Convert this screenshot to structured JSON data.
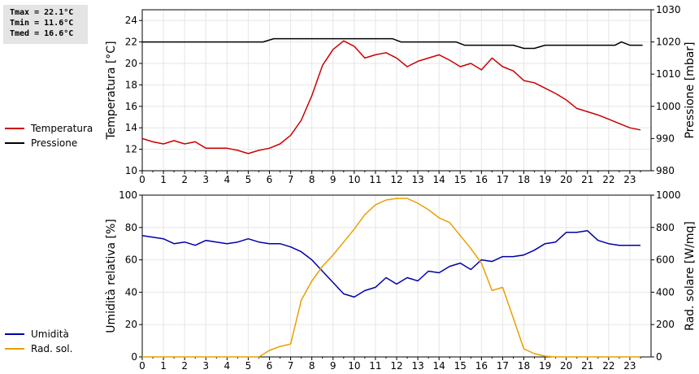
{
  "stats": {
    "tmax": "Tmax = 22.1°C",
    "tmin": "Tmin = 11.6°C",
    "tmed": "Tmed = 16.6°C"
  },
  "chart_data": [
    {
      "type": "line",
      "x_ticks": [
        "0",
        "1",
        "2",
        "3",
        "4",
        "5",
        "6",
        "7",
        "8",
        "9",
        "10",
        "11",
        "12",
        "13",
        "14",
        "15",
        "16",
        "17",
        "18",
        "19",
        "20",
        "21",
        "22",
        "23"
      ],
      "xlim": [
        0,
        24
      ],
      "y_left": {
        "label": "Temperatura [°C]",
        "ylim": [
          10,
          25
        ],
        "ticks": [
          "10",
          "12",
          "14",
          "16",
          "18",
          "20",
          "22",
          "24"
        ]
      },
      "y_right": {
        "label": "Pressione [mbar]",
        "ylim": [
          980,
          1030
        ],
        "ticks": [
          "980",
          "990",
          "1000",
          "1010",
          "1020",
          "1030"
        ]
      },
      "grid": true,
      "legend_position": "left",
      "series": [
        {
          "name": "Temperatura",
          "axis": "left",
          "color": "#cc0000",
          "x": [
            0,
            0.5,
            1,
            1.5,
            2,
            2.5,
            3,
            3.5,
            4,
            4.5,
            5,
            5.5,
            6,
            6.5,
            7,
            7.5,
            8,
            8.5,
            9,
            9.5,
            10,
            10.5,
            11,
            11.5,
            12,
            12.5,
            13,
            13.5,
            14,
            14.5,
            15,
            15.5,
            16,
            16.5,
            17,
            17.5,
            18,
            18.5,
            19,
            19.5,
            20,
            20.5,
            21,
            21.5,
            22,
            22.5,
            23,
            23.5
          ],
          "y": [
            13.0,
            12.7,
            12.5,
            12.8,
            12.5,
            12.7,
            12.1,
            12.1,
            12.1,
            11.9,
            11.6,
            11.9,
            12.1,
            12.5,
            13.3,
            14.7,
            17.0,
            19.8,
            21.3,
            22.1,
            21.6,
            20.5,
            20.8,
            21.0,
            20.5,
            19.7,
            20.2,
            20.5,
            20.8,
            20.3,
            19.7,
            20.0,
            19.4,
            20.5,
            19.7,
            19.3,
            18.4,
            18.2,
            17.7,
            17.2,
            16.6,
            15.8,
            15.5,
            15.2,
            14.8,
            14.4,
            14.0,
            13.8
          ]
        },
        {
          "name": "Pressione",
          "axis": "right",
          "color": "#000000",
          "x": [
            0,
            5.7,
            6.2,
            11.8,
            12.2,
            14.8,
            15.2,
            17.5,
            18.0,
            18.5,
            19.0,
            22.3,
            22.6,
            23.0,
            23.6
          ],
          "y": [
            1020,
            1020,
            1021,
            1021,
            1020,
            1020,
            1019,
            1019,
            1018,
            1018,
            1019,
            1019,
            1020,
            1019,
            1019
          ]
        }
      ]
    },
    {
      "type": "line",
      "x_ticks": [
        "0",
        "1",
        "2",
        "3",
        "4",
        "5",
        "6",
        "7",
        "8",
        "9",
        "10",
        "11",
        "12",
        "13",
        "14",
        "15",
        "16",
        "17",
        "18",
        "19",
        "20",
        "21",
        "22",
        "23"
      ],
      "xlim": [
        0,
        24
      ],
      "y_left": {
        "label": "Umidità relativa [%]",
        "ylim": [
          0,
          100
        ],
        "ticks": [
          "0",
          "20",
          "40",
          "60",
          "80",
          "100"
        ]
      },
      "y_right": {
        "label": "Rad. solare [W/mq]",
        "ylim": [
          0,
          1000
        ],
        "ticks": [
          "0",
          "200",
          "400",
          "600",
          "800",
          "1000"
        ]
      },
      "grid": true,
      "legend_position": "left",
      "series": [
        {
          "name": "Umidità",
          "axis": "left",
          "color": "#0000aa",
          "x": [
            0,
            0.5,
            1,
            1.5,
            2,
            2.5,
            3,
            3.5,
            4,
            4.5,
            5,
            5.5,
            6,
            6.5,
            7,
            7.5,
            8,
            8.5,
            9,
            9.5,
            10,
            10.5,
            11,
            11.5,
            12,
            12.5,
            13,
            13.5,
            14,
            14.5,
            15,
            15.5,
            16,
            16.5,
            17,
            17.5,
            18,
            18.5,
            19,
            19.5,
            20,
            20.5,
            21,
            21.5,
            22,
            22.5,
            23,
            23.5
          ],
          "y": [
            75,
            74,
            73,
            70,
            71,
            69,
            72,
            71,
            70,
            71,
            73,
            71,
            70,
            70,
            68,
            65,
            60,
            53,
            46,
            39,
            37,
            41,
            43,
            49,
            45,
            49,
            47,
            53,
            52,
            56,
            58,
            54,
            60,
            59,
            62,
            62,
            63,
            66,
            70,
            71,
            77,
            77,
            78,
            72,
            70,
            69,
            69,
            69
          ]
        },
        {
          "name": "Rad. sol.",
          "axis": "right",
          "color": "#e8a000",
          "x": [
            0,
            1,
            2,
            3,
            4,
            5,
            5.5,
            6,
            6.5,
            7,
            7.5,
            8,
            8.5,
            9,
            9.5,
            10,
            10.5,
            11,
            11.5,
            12,
            12.5,
            13,
            13.5,
            14,
            14.5,
            15,
            15.5,
            16,
            16.5,
            17,
            17.5,
            18,
            18.5,
            19,
            19.5,
            20,
            21,
            22,
            23,
            23.5
          ],
          "y": [
            0,
            0,
            0,
            0,
            0,
            0,
            0,
            40,
            65,
            80,
            350,
            470,
            560,
            630,
            710,
            790,
            880,
            940,
            970,
            980,
            980,
            950,
            910,
            860,
            830,
            750,
            670,
            580,
            410,
            430,
            240,
            50,
            20,
            5,
            0,
            0,
            0,
            0,
            0,
            0
          ]
        }
      ]
    }
  ]
}
